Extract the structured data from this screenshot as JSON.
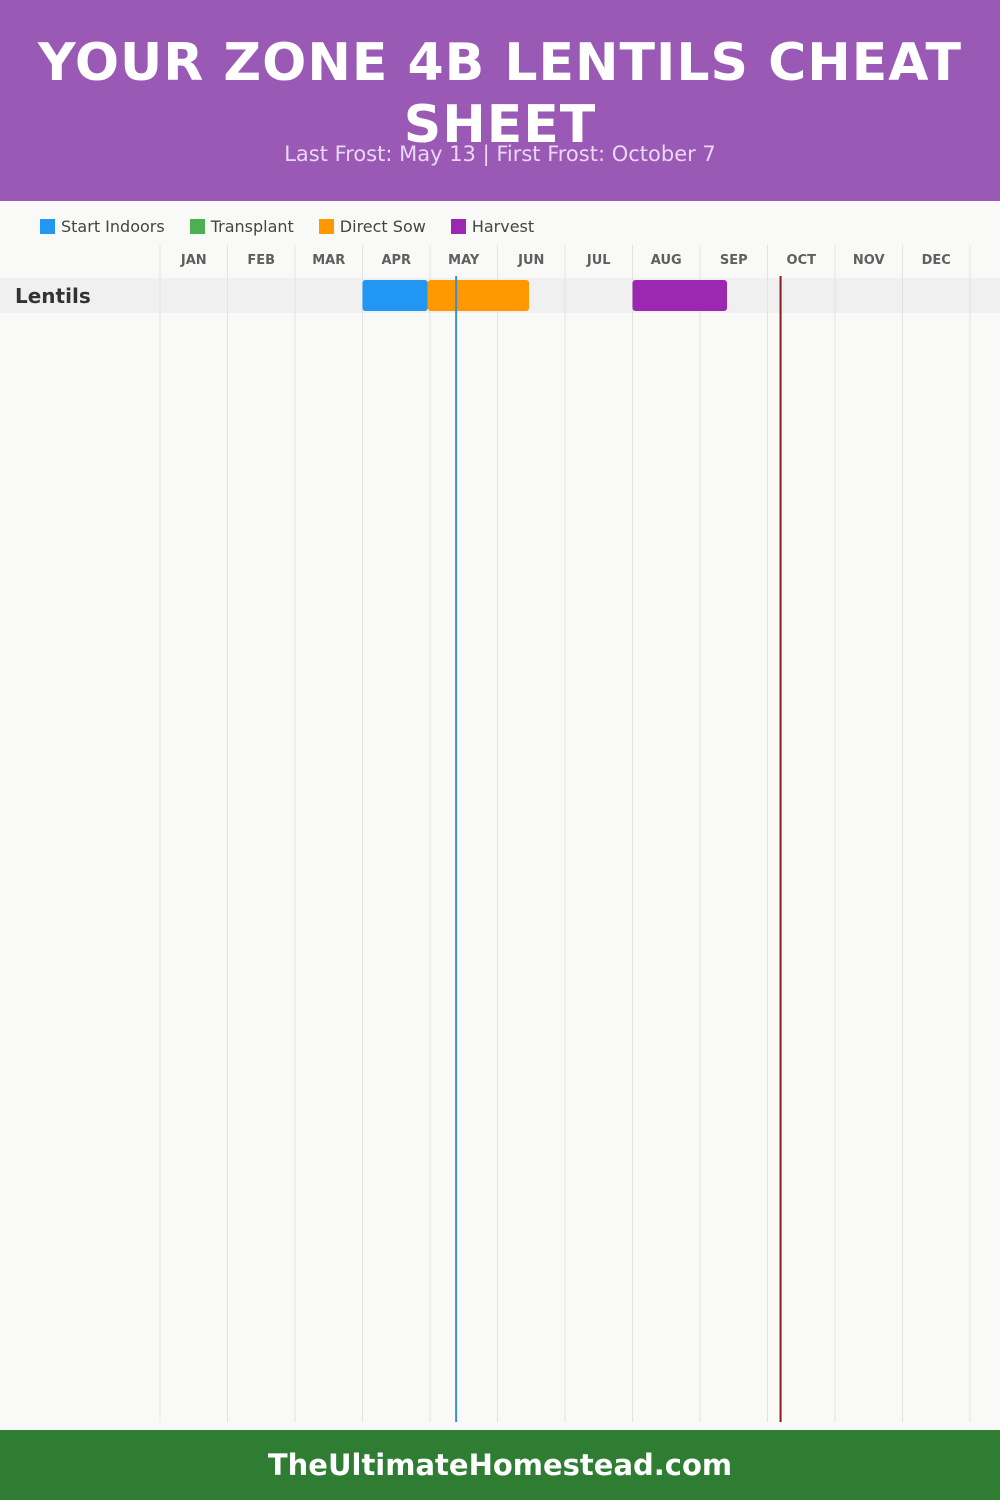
{
  "header": {
    "title": "YOUR ZONE 4B LENTILS CHEAT SHEET",
    "subtitle": "Last Frost: May 13 | First Frost: October 7"
  },
  "legend": [
    {
      "label": "Start Indoors",
      "color": "#2196f3"
    },
    {
      "label": "Transplant",
      "color": "#4caf50"
    },
    {
      "label": "Direct Sow",
      "color": "#ff9800"
    },
    {
      "label": "Harvest",
      "color": "#9c27b0"
    }
  ],
  "footer": {
    "text": "TheUltimateHomestead.com"
  },
  "chart_data": {
    "type": "gantt",
    "months": [
      "JAN",
      "FEB",
      "MAR",
      "APR",
      "MAY",
      "JUN",
      "JUL",
      "AUG",
      "SEP",
      "OCT",
      "NOV",
      "DEC"
    ],
    "rows": [
      {
        "crop": "Lentils",
        "bars": [
          {
            "phase": "Start Indoors",
            "start": "Apr 1",
            "end": "Apr 30"
          },
          {
            "phase": "Direct Sow",
            "start": "Apr 30",
            "end": "Jun 15"
          },
          {
            "phase": "Harvest",
            "start": "Aug 1",
            "end": "Sep 13"
          }
        ]
      }
    ],
    "markers": [
      {
        "name": "Last Frost",
        "date": "May 13",
        "color": "#3a8fd0"
      },
      {
        "name": "First Frost",
        "date": "October 7",
        "color": "#8b1a1a"
      }
    ]
  }
}
